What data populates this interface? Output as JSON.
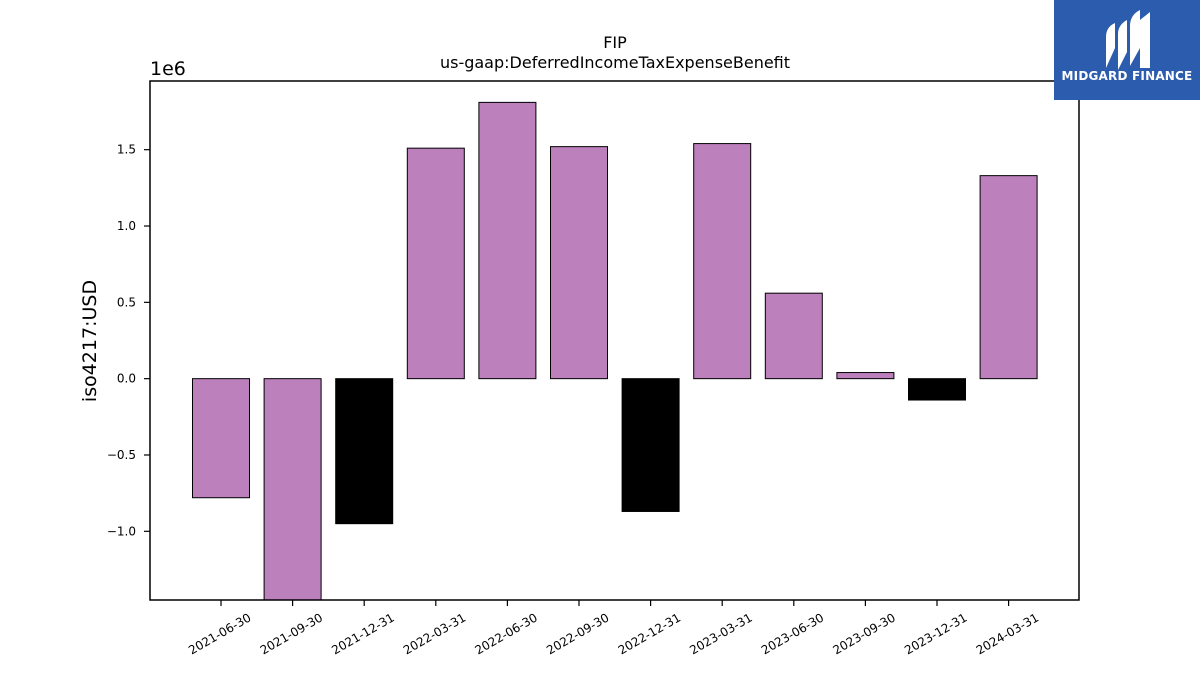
{
  "chart_data": {
    "type": "bar",
    "title": "FIP",
    "subtitle": "us-gaap:DeferredIncomeTaxExpenseBenefit",
    "ylabel": "iso4217:USD",
    "xlabel": "",
    "offset_label": "1e6",
    "ylim": [
      -1.45,
      1.95
    ],
    "yticks": [
      -1.0,
      -0.5,
      0.0,
      0.5,
      1.0,
      1.5
    ],
    "ytick_labels": [
      "−1.0",
      "−0.5",
      "0.0",
      "0.5",
      "1.0",
      "1.5"
    ],
    "categories": [
      "2021-06-30",
      "2021-09-30",
      "2021-12-31",
      "2022-03-31",
      "2022-06-30",
      "2022-09-30",
      "2022-12-31",
      "2023-03-31",
      "2023-06-30",
      "2023-09-30",
      "2023-12-31",
      "2024-03-31"
    ],
    "values": [
      -0.78,
      -1.45,
      -0.95,
      1.51,
      1.81,
      1.52,
      -0.87,
      1.54,
      0.56,
      0.04,
      -0.14,
      1.33
    ],
    "bar_colors": [
      "#bc80bd",
      "#bc80bd",
      "#000000",
      "#bc80bd",
      "#bc80bd",
      "#bc80bd",
      "#000000",
      "#bc80bd",
      "#bc80bd",
      "#bc80bd",
      "#000000",
      "#bc80bd"
    ],
    "grid": false,
    "legend": "none"
  },
  "logo": {
    "text": "MIDGARD FINANCE",
    "color": "#2c5cad"
  }
}
